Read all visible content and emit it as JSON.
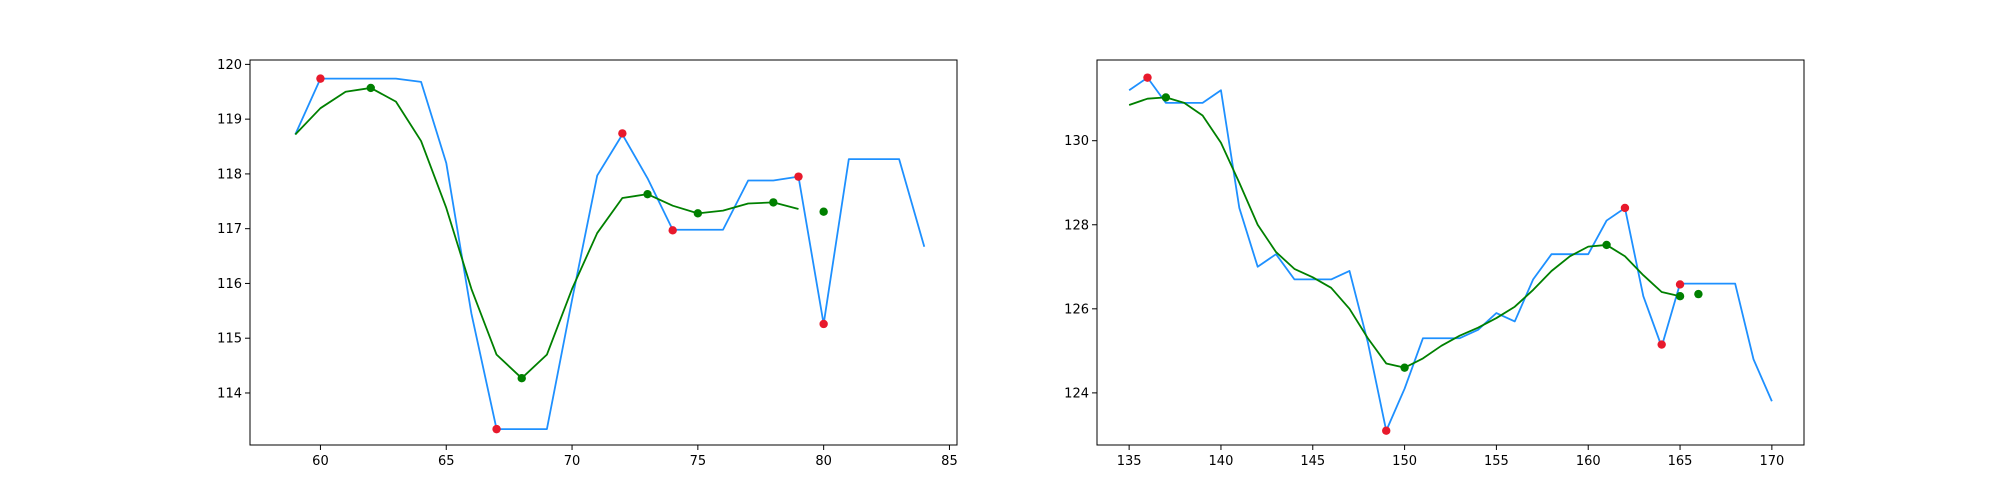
{
  "chart_data": [
    {
      "type": "line",
      "xlim": [
        57.2,
        85.3
      ],
      "ylim": [
        113.05,
        120.08
      ],
      "xticks": [
        60,
        65,
        70,
        75,
        80,
        85
      ],
      "yticks": [
        114,
        115,
        116,
        117,
        118,
        119,
        120
      ],
      "grid": false,
      "colors": {
        "price": "#1e90ff",
        "smooth": "#008000",
        "smooth_points": "#008000",
        "extrema": "#e8192c"
      },
      "series": [
        {
          "kind": "line",
          "color": "#1e90ff",
          "x": [
            59,
            60,
            61,
            62,
            63,
            64,
            65,
            66,
            67,
            68,
            69,
            70,
            71,
            72,
            73,
            74,
            75,
            76,
            77,
            78,
            79,
            80,
            81,
            82,
            83,
            84
          ],
          "y": [
            118.72,
            119.74,
            119.74,
            119.74,
            119.74,
            119.68,
            118.2,
            115.45,
            113.34,
            113.34,
            113.34,
            115.7,
            117.97,
            118.72,
            117.92,
            116.98,
            116.98,
            116.98,
            117.88,
            117.88,
            117.95,
            115.26,
            118.27,
            118.27,
            118.27,
            116.67
          ]
        },
        {
          "kind": "line",
          "color": "#008000",
          "x": [
            59,
            60,
            61,
            62,
            63,
            64,
            65,
            66,
            67,
            68,
            69,
            70,
            71,
            72,
            73,
            74,
            75,
            76,
            77,
            78,
            79
          ],
          "y": [
            118.72,
            119.2,
            119.5,
            119.57,
            119.32,
            118.6,
            117.38,
            115.9,
            114.7,
            114.27,
            114.7,
            115.9,
            116.92,
            117.56,
            117.63,
            117.42,
            117.28,
            117.33,
            117.46,
            117.48,
            117.36
          ]
        },
        {
          "kind": "scatter",
          "color": "#008000",
          "x": [
            62,
            68,
            73,
            75,
            78,
            80
          ],
          "y": [
            119.57,
            114.27,
            117.63,
            117.28,
            117.48,
            117.31
          ]
        },
        {
          "kind": "scatter",
          "color": "#e8192c",
          "x": [
            60,
            67,
            72,
            74,
            79,
            80
          ],
          "y": [
            119.74,
            113.34,
            118.74,
            116.97,
            117.95,
            115.26
          ]
        }
      ]
    },
    {
      "type": "line",
      "xlim": [
        133.25,
        171.75
      ],
      "ylim": [
        122.76,
        131.92
      ],
      "xticks": [
        135,
        140,
        145,
        150,
        155,
        160,
        165,
        170
      ],
      "yticks": [
        124,
        126,
        128,
        130
      ],
      "grid": false,
      "colors": {
        "price": "#1e90ff",
        "smooth": "#008000",
        "smooth_points": "#008000",
        "extrema": "#e8192c"
      },
      "series": [
        {
          "kind": "line",
          "color": "#1e90ff",
          "x": [
            135,
            136,
            137,
            138,
            139,
            140,
            141,
            142,
            143,
            144,
            145,
            146,
            147,
            148,
            149,
            150,
            151,
            152,
            153,
            154,
            155,
            156,
            157,
            158,
            159,
            160,
            161,
            162,
            163,
            164,
            165,
            166,
            167,
            168,
            169,
            170
          ],
          "y": [
            131.2,
            131.5,
            130.9,
            130.9,
            130.9,
            131.2,
            128.4,
            127.0,
            127.3,
            126.7,
            126.7,
            126.7,
            126.9,
            125.2,
            123.1,
            124.1,
            125.3,
            125.3,
            125.3,
            125.5,
            125.9,
            125.7,
            126.7,
            127.3,
            127.3,
            127.3,
            128.1,
            128.4,
            126.3,
            125.1,
            126.6,
            126.6,
            126.6,
            126.6,
            124.8,
            123.8
          ]
        },
        {
          "kind": "line",
          "color": "#008000",
          "x": [
            135,
            136,
            137,
            138,
            139,
            140,
            141,
            142,
            143,
            144,
            145,
            146,
            147,
            148,
            149,
            150,
            151,
            152,
            153,
            154,
            155,
            156,
            157,
            158,
            159,
            160,
            161,
            162,
            163,
            164,
            165
          ],
          "y": [
            130.85,
            131.0,
            131.03,
            130.9,
            130.6,
            129.95,
            129.0,
            128.0,
            127.35,
            126.95,
            126.75,
            126.5,
            126.0,
            125.3,
            124.7,
            124.6,
            124.82,
            125.12,
            125.36,
            125.55,
            125.78,
            126.05,
            126.45,
            126.9,
            127.25,
            127.48,
            127.52,
            127.25,
            126.8,
            126.4,
            126.3
          ]
        },
        {
          "kind": "scatter",
          "color": "#008000",
          "x": [
            137,
            150,
            161,
            165,
            166
          ],
          "y": [
            131.03,
            124.6,
            127.52,
            126.3,
            126.35
          ]
        },
        {
          "kind": "scatter",
          "color": "#e8192c",
          "x": [
            136,
            149,
            162,
            164,
            165
          ],
          "y": [
            131.5,
            123.1,
            128.4,
            125.15,
            126.58
          ]
        }
      ]
    }
  ]
}
